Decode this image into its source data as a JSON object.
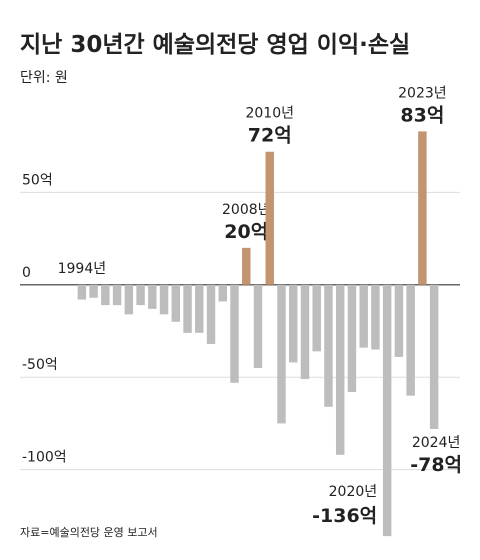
{
  "chart_data": {
    "type": "bar",
    "title": "지난 30년간 예술의전당 영업 이익·손실",
    "subtitle": "단위: 원",
    "source": "자료=예술의전당 운영 보고서",
    "categories": [
      "1994년",
      null,
      null,
      null,
      null,
      null,
      null,
      null,
      null,
      null,
      null,
      null,
      null,
      null,
      "2008년",
      null,
      "2010년",
      null,
      null,
      null,
      null,
      null,
      null,
      null,
      null,
      null,
      "2020년",
      null,
      null,
      "2023년",
      "2024년"
    ],
    "values": [
      -8,
      -7,
      -11,
      -11,
      -16,
      -11,
      -13,
      -16,
      -20,
      -26,
      -26,
      -32,
      -9,
      -53,
      20,
      -45,
      72,
      -75,
      -42,
      -51,
      -36,
      -66,
      -92,
      -58,
      -34,
      -35,
      -136,
      -39,
      -60,
      83,
      -78
    ],
    "value_labels": [
      null,
      null,
      null,
      null,
      null,
      null,
      null,
      null,
      null,
      null,
      null,
      null,
      null,
      null,
      "20억",
      null,
      "72억",
      null,
      null,
      null,
      null,
      null,
      null,
      null,
      null,
      null,
      "-136억",
      null,
      null,
      "83억",
      "-78억"
    ],
    "positive_color": "#c4946e",
    "negative_color": "#bdbdbd",
    "ylim": [
      -137,
      100
    ],
    "yticks": [
      {
        "value": 50,
        "label": "50억"
      },
      0,
      {
        "value": -50,
        "label": "-50억"
      },
      {
        "value": -100,
        "label": "-100억"
      }
    ],
    "grid": true
  }
}
